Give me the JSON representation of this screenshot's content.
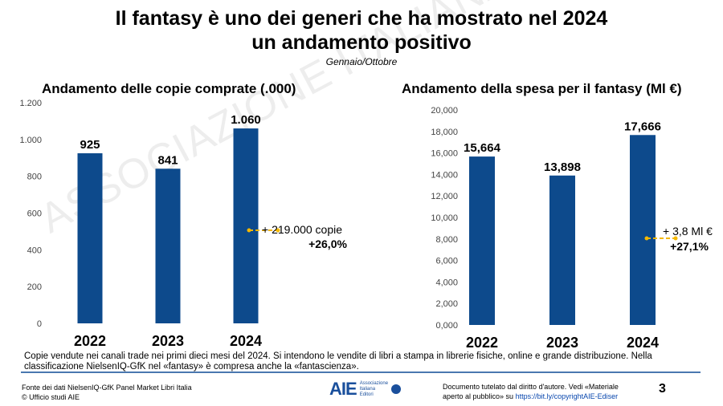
{
  "title_line1": "Il fantasy è uno dei generi che ha mostrato nel 2024",
  "title_line2": "un andamento positivo",
  "subtitle": "Gennaio/Ottobre",
  "watermark": "ASSOCIAZIONE ITALIANA EDITORI",
  "chart_data": [
    {
      "type": "bar",
      "title": "Andamento delle copie comprate (.000)",
      "categories": [
        "2022",
        "2023",
        "2024"
      ],
      "values": [
        925,
        841,
        1060
      ],
      "data_labels": [
        "925",
        "841",
        "1.060"
      ],
      "ylim": [
        0,
        1200
      ],
      "yticks": [
        0,
        200,
        400,
        600,
        800,
        1000,
        1200
      ],
      "ytick_labels": [
        "0",
        "200",
        "400",
        "600",
        "800",
        "1.000",
        "1.200"
      ],
      "bar_color": "#0d4a8c",
      "annotation": {
        "line1": "+ 219.000 copie",
        "line2": "+26,0%",
        "arrow_color": "#f5b800"
      }
    },
    {
      "type": "bar",
      "title": "Andamento della spesa per il fantasy (Ml €)",
      "categories": [
        "2022",
        "2023",
        "2024"
      ],
      "values": [
        15664,
        13898,
        17666
      ],
      "data_labels": [
        "15,664",
        "13,898",
        "17,666"
      ],
      "ylim": [
        0,
        20000
      ],
      "yticks": [
        0,
        2000,
        4000,
        6000,
        8000,
        10000,
        12000,
        14000,
        16000,
        18000,
        20000
      ],
      "ytick_labels": [
        "0,000",
        "2,000",
        "4,000",
        "6,000",
        "8,000",
        "10,000",
        "12,000",
        "14,000",
        "16,000",
        "18,000",
        "20,000"
      ],
      "bar_color": "#0d4a8c",
      "annotation": {
        "line1": "+ 3,8 Ml €",
        "line2": "+27,1%",
        "arrow_color": "#f5b800"
      }
    }
  ],
  "note": "Copie vendute nei canali trade nei primi dieci mesi del 2024. Si intendono le vendite di libri a stampa in librerie fisiche, online e grande distribuzione. Nella classificazione NielsenIQ-GfK nel «fantasy» è compresa anche la «fantascienza».",
  "footer": {
    "source1": "Fonte dei dati NielsenIQ-GfK Panel Market Libri Italia",
    "source2": "© Ufficio studi AIE",
    "logo": "AIE",
    "logo_text": [
      "Associazione",
      "Italiana",
      "Editori"
    ],
    "copyright": "Documento tutelato dal diritto d'autore. Vedi «Materiale aperto al pubblico» su ",
    "link": "https://bit.ly/copyrightAIE-Ediser",
    "page": "3"
  }
}
